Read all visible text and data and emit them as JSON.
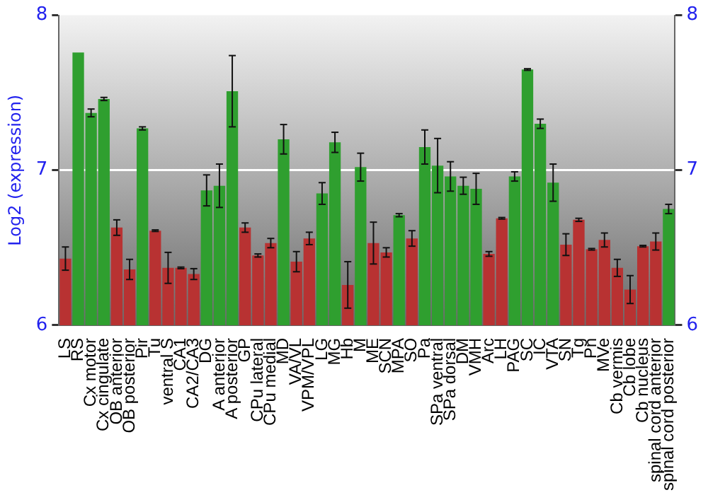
{
  "chart_data": {
    "type": "bar",
    "ylabel": "Log2 (expression)",
    "categories": [
      "LS",
      "RS",
      "Cx motor",
      "Cx cingulate",
      "OB anterior",
      "OB posterior",
      "Pir",
      "Tu",
      "ventral S",
      "CA1",
      "CA2/CA3",
      "DG",
      "A anterior",
      "A posterior",
      "GP",
      "CPu lateral",
      "CPu medial",
      "MD",
      "VA/VL",
      "VPM/VPL",
      "LG",
      "MG",
      "Hb",
      "M",
      "ME",
      "SCN",
      "MPA",
      "SO",
      "Pa",
      "SPa ventral",
      "SPa dorsal",
      "DM",
      "VMH",
      "Arc",
      "LH",
      "PAG",
      "SC",
      "IC",
      "VTA",
      "SN",
      "Tg",
      "Pn",
      "MVe",
      "Cb vermis",
      "Cb lobe",
      "Cb nucleus",
      "spinal cord anterior",
      "spinal cord posterior"
    ],
    "values": [
      6.43,
      7.76,
      7.37,
      7.46,
      6.63,
      6.36,
      7.27,
      6.61,
      6.37,
      6.37,
      6.33,
      6.87,
      6.9,
      7.51,
      6.63,
      6.45,
      6.53,
      7.2,
      6.41,
      6.56,
      6.85,
      7.18,
      6.26,
      7.02,
      6.53,
      6.47,
      6.71,
      6.56,
      7.15,
      7.03,
      6.96,
      6.9,
      6.88,
      6.46,
      6.69,
      6.96,
      7.65,
      7.3,
      6.92,
      6.52,
      6.68,
      6.49,
      6.55,
      6.37,
      6.23,
      6.51,
      6.54,
      6.75
    ],
    "errors": [
      0.075,
      null,
      0.025,
      0.01,
      0.05,
      0.065,
      0.01,
      0.005,
      0.1,
      0.005,
      0.035,
      0.1,
      0.14,
      0.23,
      0.03,
      0.01,
      0.03,
      0.095,
      0.065,
      0.04,
      0.07,
      0.065,
      0.15,
      0.09,
      0.135,
      0.03,
      0.01,
      0.05,
      0.11,
      0.175,
      0.095,
      0.055,
      0.1,
      0.015,
      0.005,
      0.03,
      0.005,
      0.03,
      0.12,
      0.07,
      0.01,
      0.005,
      0.045,
      0.055,
      0.09,
      0.005,
      0.055,
      0.03
    ],
    "colors": [
      "#b83232",
      "#2f9f2f",
      "#2f9f2f",
      "#2f9f2f",
      "#b83232",
      "#b83232",
      "#2f9f2f",
      "#b83232",
      "#b83232",
      "#b83232",
      "#b83232",
      "#2f9f2f",
      "#2f9f2f",
      "#2f9f2f",
      "#b83232",
      "#b83232",
      "#b83232",
      "#2f9f2f",
      "#b83232",
      "#b83232",
      "#2f9f2f",
      "#2f9f2f",
      "#b83232",
      "#2f9f2f",
      "#b83232",
      "#b83232",
      "#2f9f2f",
      "#b83232",
      "#2f9f2f",
      "#2f9f2f",
      "#2f9f2f",
      "#2f9f2f",
      "#2f9f2f",
      "#b83232",
      "#b83232",
      "#2f9f2f",
      "#2f9f2f",
      "#2f9f2f",
      "#2f9f2f",
      "#b83232",
      "#b83232",
      "#b83232",
      "#b83232",
      "#b83232",
      "#b83232",
      "#b83232",
      "#b83232",
      "#2f9f2f"
    ],
    "ylim": [
      6,
      8
    ],
    "yticks": [
      6,
      7,
      8
    ],
    "y2lim": [
      6,
      8
    ],
    "y2ticks": [
      6,
      7,
      8
    ],
    "grid": "y",
    "legend": false
  }
}
